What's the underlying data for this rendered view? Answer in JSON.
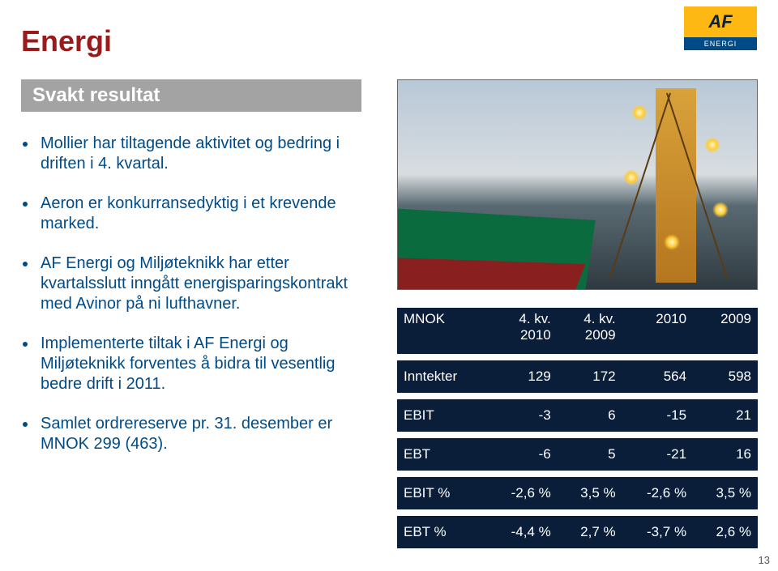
{
  "logo": {
    "top": "AF",
    "bottom": "ENERGI"
  },
  "title": {
    "text": "Energi",
    "color": "#9a1b1b"
  },
  "subtitle": "Svakt resultat",
  "bullets": [
    "Mollier har tiltagende aktivitet og bedring i driften i 4. kvartal.",
    "Aeron er konkurransedyktig i et krevende marked.",
    "AF Energi og Miljøteknikk har etter kvartalsslutt inngått energisparingskontrakt med Avinor på ni lufthavner.",
    "Implementerte tiltak i AF Energi og Miljøteknikk  forventes å bidra til vesentlig bedre drift i 2011.",
    "Samlet ordrereserve pr. 31. desember er MNOK 299 (463)."
  ],
  "bullet_color": "#004b87",
  "table": {
    "header_bg": "#0a1e3a",
    "headers": [
      "MNOK",
      "4. kv.\n2010",
      "4. kv.\n2009",
      "2010",
      "2009"
    ],
    "rows": [
      [
        "Inntekter",
        "129",
        "172",
        "564",
        "598"
      ],
      [
        "EBIT",
        "-3",
        "6",
        "-15",
        "21"
      ],
      [
        "EBT",
        "-6",
        "5",
        "-21",
        "16"
      ],
      [
        "EBIT %",
        "-2,6 %",
        "3,5 %",
        "-2,6 %",
        "3,5 %"
      ],
      [
        "EBT %",
        "-4,4 %",
        "2,7 %",
        "-3,7 %",
        "2,6 %"
      ]
    ]
  },
  "page_number": "13"
}
